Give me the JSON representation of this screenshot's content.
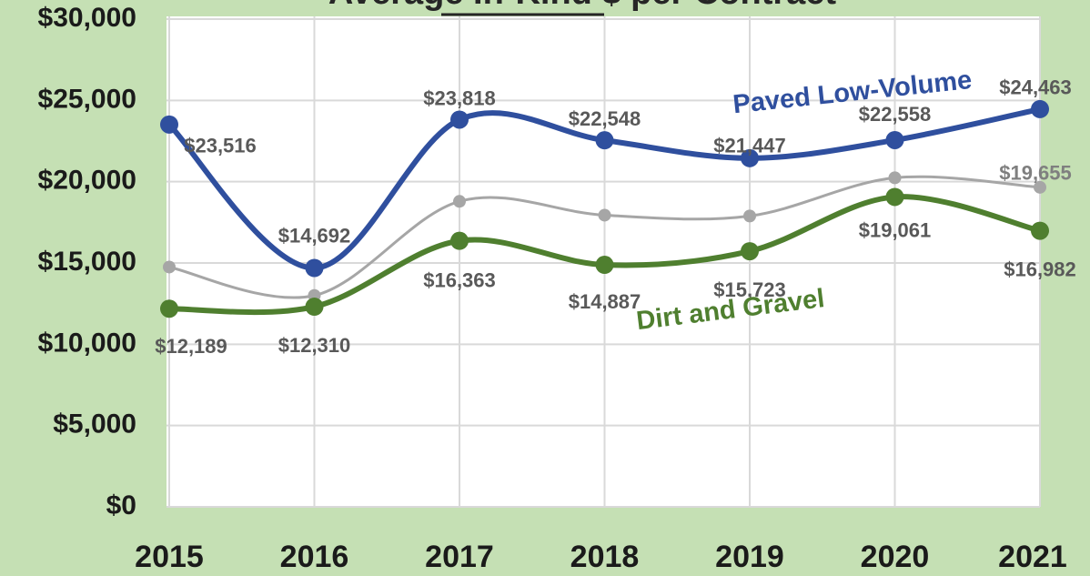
{
  "chart_data": {
    "type": "line",
    "title": "Average In-Kind $ per Contract",
    "categories": [
      "2015",
      "2016",
      "2017",
      "2018",
      "2019",
      "2020",
      "2021"
    ],
    "series": [
      {
        "name": "Paved Low-Volume",
        "color": "#2f4f9e",
        "values": [
          23516,
          14692,
          23818,
          22548,
          21447,
          22558,
          24463
        ],
        "value_labels": [
          "$23,516",
          "$14,692",
          "$23,818",
          "$22,548",
          "$21,447",
          "$22,558",
          "$24,463"
        ]
      },
      {
        "color": "#a6a6a6",
        "values": [
          14750,
          13000,
          18790,
          17940,
          17890,
          20240,
          19655
        ],
        "value_labels": [
          null,
          null,
          null,
          null,
          null,
          null,
          "$19,655"
        ]
      },
      {
        "name": "Dirt and Gravel",
        "color": "#4f7f2f",
        "values": [
          12189,
          12310,
          16363,
          14887,
          15723,
          19061,
          16982
        ],
        "value_labels": [
          "$12,189",
          "$12,310",
          "$16,363",
          "$14,887",
          "$15,723",
          "$19,061",
          "$16,982"
        ]
      }
    ],
    "ylim": [
      0,
      30000
    ],
    "yticks": [
      {
        "value": 0,
        "label": "$0"
      },
      {
        "value": 5000,
        "label": "$5,000"
      },
      {
        "value": 10000,
        "label": "$10,000"
      },
      {
        "value": 15000,
        "label": "$15,000"
      },
      {
        "value": 20000,
        "label": "$20,000"
      },
      {
        "value": 25000,
        "label": "$25,000"
      },
      {
        "value": 30000,
        "label": "$30,000"
      }
    ],
    "grid": true
  }
}
